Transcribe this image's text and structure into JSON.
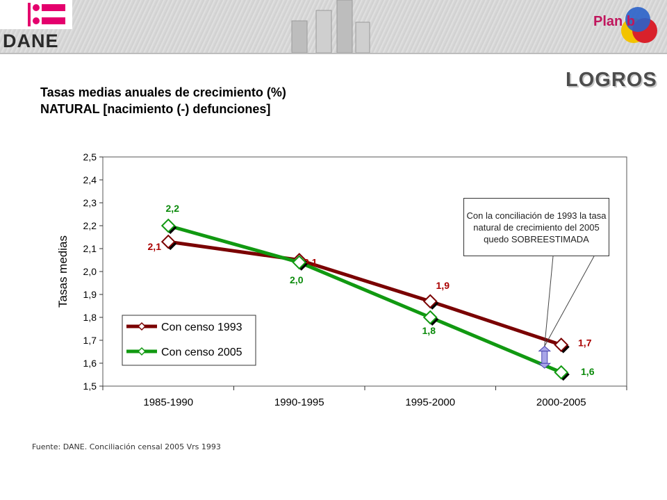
{
  "header": {
    "logo_text": "DANE",
    "plan_text": "Plan b",
    "section_title": "LOGROS"
  },
  "title": {
    "line1": "Tasas medias anuales de crecimiento (%)",
    "line2": "NATURAL [nacimiento (-) defunciones]"
  },
  "callout": {
    "text": "Con la conciliación de 1993 la tasa natural de crecimiento del 2005 quedo SOBREESTIMADA"
  },
  "source": "Fuente: DANE.  Conciliación censal 2005 Vrs 1993",
  "colors": {
    "series_1993": "#7a0000",
    "series_2005": "#119911",
    "label_1993": "#aa0000",
    "label_2005": "#0a8a0a"
  },
  "chart_data": {
    "type": "line",
    "ylabel": "Tasas medias",
    "ylim": [
      1.5,
      2.5
    ],
    "yticks": [
      "1,5",
      "1,6",
      "1,7",
      "1,8",
      "1,9",
      "2,0",
      "2,1",
      "2,2",
      "2,3",
      "2,4",
      "2,5"
    ],
    "categories": [
      "1985-1990",
      "1990-1995",
      "1995-2000",
      "2000-2005"
    ],
    "series": [
      {
        "name": "Con censo 1993",
        "values": [
          2.13,
          2.05,
          1.87,
          1.68
        ],
        "labels": [
          "2,1",
          "2,1",
          "1,9",
          "1,7"
        ]
      },
      {
        "name": "Con censo 2005",
        "values": [
          2.2,
          2.04,
          1.8,
          1.56
        ],
        "labels": [
          "2,2",
          "2,0",
          "1,8",
          "1,6"
        ]
      }
    ],
    "legend_position": "bottom-left",
    "grid": false
  }
}
